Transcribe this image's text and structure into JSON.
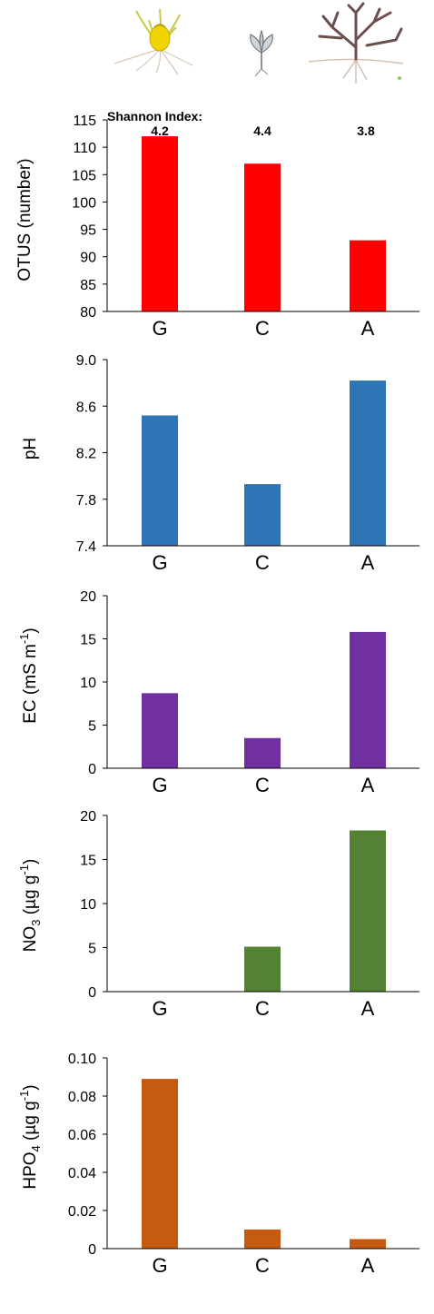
{
  "chart_data": [
    {
      "id": "otus",
      "type": "bar",
      "categories": [
        "G",
        "C",
        "A"
      ],
      "values": [
        112,
        107,
        93
      ],
      "ylim": [
        80,
        115
      ],
      "yticks": [
        80,
        85,
        90,
        95,
        100,
        105,
        110,
        115
      ],
      "tick_labels": [
        "80",
        "85",
        "90",
        "95",
        "100",
        "105",
        "110",
        "115"
      ],
      "ylabel": "OTUS (number)",
      "color": "#ff0000",
      "annotation_title": "Shannon Index:",
      "annotations": [
        "4.2",
        "4.4",
        "3.8"
      ]
    },
    {
      "id": "ph",
      "type": "bar",
      "categories": [
        "G",
        "C",
        "A"
      ],
      "values": [
        8.52,
        7.93,
        8.82
      ],
      "ylim": [
        7.4,
        9.0
      ],
      "yticks": [
        7.4,
        7.8,
        8.2,
        8.6,
        9.0
      ],
      "tick_labels": [
        "7.4",
        "7.8",
        "8.2",
        "8.6",
        "9.0"
      ],
      "ylabel": "pH",
      "color": "#2e75b6"
    },
    {
      "id": "ec",
      "type": "bar",
      "categories": [
        "G",
        "C",
        "A"
      ],
      "values": [
        8.7,
        3.5,
        15.8
      ],
      "ylim": [
        0,
        20
      ],
      "yticks": [
        0,
        5,
        10,
        15,
        20
      ],
      "tick_labels": [
        "0",
        "5",
        "10",
        "15",
        "20"
      ],
      "ylabel_main": "EC (mS m",
      "ylabel_sup": "-1",
      "ylabel_end": ")",
      "color": "#7030a0"
    },
    {
      "id": "no3",
      "type": "bar",
      "categories": [
        "G",
        "C",
        "A"
      ],
      "values": [
        0,
        5.1,
        18.3
      ],
      "ylim": [
        0,
        20
      ],
      "yticks": [
        0,
        5,
        10,
        15,
        20
      ],
      "tick_labels": [
        "0",
        "5",
        "10",
        "15",
        "20"
      ],
      "ylabel_main": "NO",
      "ylabel_sub": "3",
      "ylabel_mid": " (µg g",
      "ylabel_sup": "-1",
      "ylabel_end": ")",
      "color": "#548235"
    },
    {
      "id": "hpo4",
      "type": "bar",
      "categories": [
        "G",
        "C",
        "A"
      ],
      "values": [
        0.089,
        0.01,
        0.005
      ],
      "ylim": [
        0,
        0.1
      ],
      "yticks": [
        0,
        0.02,
        0.04,
        0.06,
        0.08,
        0.1
      ],
      "tick_labels": [
        "0",
        "0.02",
        "0.04",
        "0.06",
        "0.08",
        "0.10"
      ],
      "ylabel_main": "HPO",
      "ylabel_sub": "4",
      "ylabel_mid": " (µg g",
      "ylabel_sup": "-1",
      "ylabel_end": ")",
      "color": "#c55a11"
    }
  ],
  "illustrations": [
    "grass-plant-icon",
    "seedling-icon",
    "shrub-icon"
  ],
  "colors": {
    "axis": "#000000",
    "background": "#ffffff",
    "grass": "#e8c800",
    "shrub": "#6b4f4f"
  }
}
